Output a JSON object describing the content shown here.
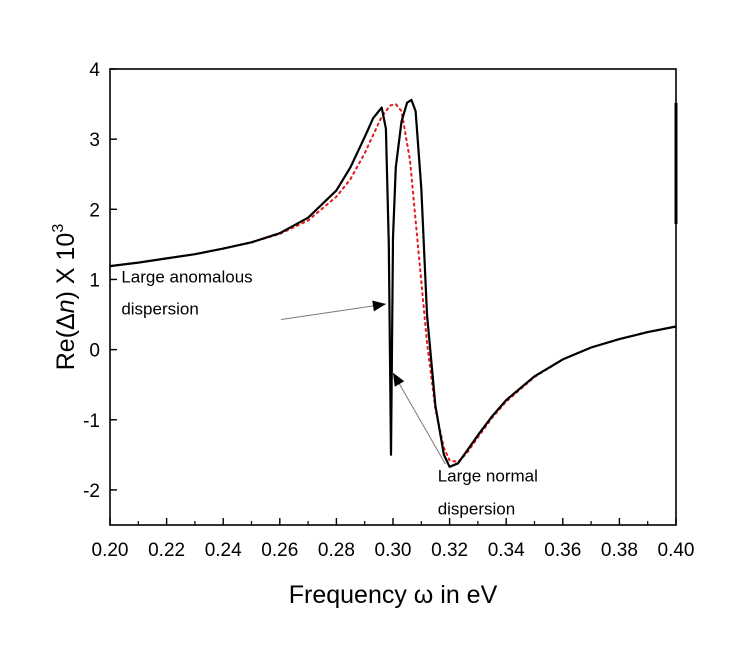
{
  "chart_data": {
    "type": "line",
    "title": "",
    "xlabel": "Frequency ω in eV",
    "ylabel": {
      "prefix": "Re(Δ",
      "var": "n",
      "suffix": ") X 10",
      "exp": "3"
    },
    "xlim": [
      0.2,
      0.4
    ],
    "ylim": [
      -2.5,
      4.0
    ],
    "x_ticks": [
      0.2,
      0.22,
      0.24,
      0.26,
      0.28,
      0.3,
      0.32,
      0.34,
      0.36,
      0.38,
      0.4
    ],
    "x_tick_labels": [
      "0.20",
      "0.22",
      "0.24",
      "0.26",
      "0.28",
      "0.30",
      "0.32",
      "0.34",
      "0.36",
      "0.38",
      "0.40"
    ],
    "y_ticks": [
      -2,
      -1,
      0,
      1,
      2,
      3,
      4
    ],
    "y_tick_labels": [
      "-2",
      "-1",
      "0",
      "1",
      "2",
      "3",
      "4"
    ],
    "grid": false,
    "series": [
      {
        "name": "solid",
        "color": "#000000",
        "style": "solid",
        "x": [
          0.2,
          0.21,
          0.22,
          0.23,
          0.24,
          0.25,
          0.26,
          0.27,
          0.28,
          0.285,
          0.29,
          0.293,
          0.296,
          0.2975,
          0.2985,
          0.2993,
          0.3,
          0.301,
          0.303,
          0.305,
          0.3065,
          0.308,
          0.31,
          0.312,
          0.315,
          0.318,
          0.32,
          0.323,
          0.326,
          0.33,
          0.335,
          0.34,
          0.35,
          0.36,
          0.37,
          0.38,
          0.39,
          0.4
        ],
        "y": [
          1.19,
          1.24,
          1.3,
          1.36,
          1.44,
          1.53,
          1.66,
          1.88,
          2.27,
          2.6,
          3.03,
          3.3,
          3.45,
          3.15,
          1.5,
          -1.5,
          1.6,
          2.6,
          3.25,
          3.52,
          3.56,
          3.4,
          2.3,
          0.5,
          -0.8,
          -1.5,
          -1.67,
          -1.62,
          -1.45,
          -1.22,
          -0.95,
          -0.72,
          -0.38,
          -0.14,
          0.03,
          0.15,
          0.25,
          0.33
        ]
      },
      {
        "name": "dotted",
        "color": "#e31a1a",
        "style": "dotted",
        "x": [
          0.2,
          0.21,
          0.22,
          0.23,
          0.24,
          0.25,
          0.26,
          0.27,
          0.28,
          0.285,
          0.29,
          0.293,
          0.296,
          0.299,
          0.301,
          0.303,
          0.306,
          0.309,
          0.312,
          0.315,
          0.318,
          0.32,
          0.323,
          0.326,
          0.33,
          0.335,
          0.34,
          0.35,
          0.36,
          0.37,
          0.38,
          0.39,
          0.4
        ],
        "y": [
          1.19,
          1.24,
          1.3,
          1.36,
          1.44,
          1.53,
          1.65,
          1.84,
          2.18,
          2.43,
          2.8,
          3.06,
          3.32,
          3.48,
          3.5,
          3.4,
          2.7,
          1.4,
          0.1,
          -0.85,
          -1.4,
          -1.58,
          -1.6,
          -1.48,
          -1.25,
          -0.97,
          -0.74,
          -0.39,
          -0.14,
          0.03,
          0.15,
          0.25,
          0.33
        ]
      }
    ],
    "annotations": [
      {
        "id": "anomalous",
        "lines": [
          "Large anomalous",
          "dispersion"
        ],
        "text_x": 0.204,
        "text_y": 0.96,
        "text_baselines_y": [
          0.96,
          0.5
        ],
        "line_start": [
          0.2605,
          0.43
        ],
        "arrow_tip": [
          0.2975,
          0.65
        ]
      },
      {
        "id": "normal",
        "lines": [
          "Large normal",
          "dispersion"
        ],
        "text_x": 0.3158,
        "text_baselines_y": [
          -1.88,
          -2.35
        ],
        "line_start": [
          0.3185,
          -1.63
        ],
        "arrow_tip": [
          0.3,
          -0.33
        ]
      }
    ]
  }
}
